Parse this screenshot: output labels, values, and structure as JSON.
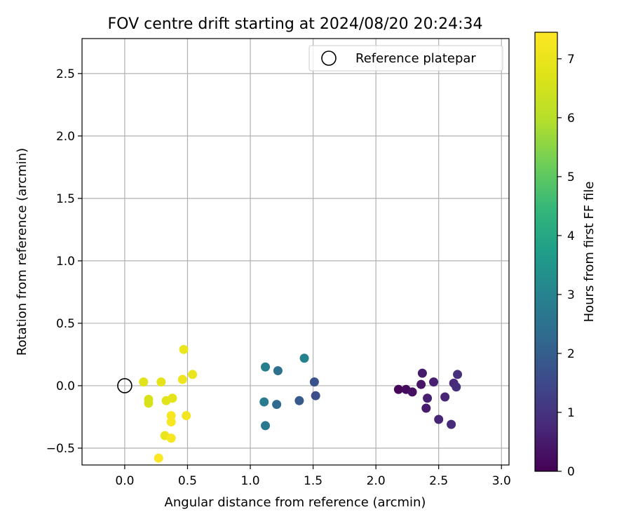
{
  "chart_data": {
    "type": "scatter",
    "title": "FOV centre drift starting at 2024/08/20 20:24:34",
    "xlabel": "Angular distance from reference (arcmin)",
    "ylabel": "Rotation from reference (arcmin)",
    "xlim": [
      -0.34,
      3.06
    ],
    "ylim": [
      -0.635,
      2.78
    ],
    "xticks": [
      0.0,
      0.5,
      1.0,
      1.5,
      2.0,
      2.5,
      3.0
    ],
    "xtick_labels": [
      "0.0",
      "0.5",
      "1.0",
      "1.5",
      "2.0",
      "2.5",
      "3.0"
    ],
    "yticks": [
      -0.5,
      0.0,
      0.5,
      1.0,
      1.5,
      2.0,
      2.5
    ],
    "ytick_labels": [
      "−0.5",
      "0.0",
      "0.5",
      "1.0",
      "1.5",
      "2.0",
      "2.5"
    ],
    "grid": true,
    "legend": {
      "position": "top-right",
      "entries": [
        "Reference platepar"
      ]
    },
    "reference": {
      "x": 0.0,
      "y": 0.0
    },
    "colorbar": {
      "label": "Hours from first FF file",
      "range": [
        0,
        7.45
      ],
      "ticks": [
        0,
        1,
        2,
        3,
        4,
        5,
        6,
        7
      ],
      "tick_labels": [
        "0",
        "1",
        "2",
        "3",
        "4",
        "5",
        "6",
        "7"
      ],
      "colormap": "viridis"
    },
    "points": [
      {
        "x": 2.18,
        "y": -0.03,
        "t": 0.1
      },
      {
        "x": 2.24,
        "y": -0.03,
        "t": 0.2
      },
      {
        "x": 2.29,
        "y": -0.05,
        "t": 0.3
      },
      {
        "x": 2.36,
        "y": 0.01,
        "t": 0.4
      },
      {
        "x": 2.37,
        "y": 0.1,
        "t": 0.5
      },
      {
        "x": 2.4,
        "y": -0.18,
        "t": 0.5
      },
      {
        "x": 2.41,
        "y": -0.1,
        "t": 0.6
      },
      {
        "x": 2.46,
        "y": 0.03,
        "t": 0.6
      },
      {
        "x": 2.5,
        "y": -0.27,
        "t": 0.7
      },
      {
        "x": 2.55,
        "y": -0.09,
        "t": 0.7
      },
      {
        "x": 2.6,
        "y": -0.31,
        "t": 0.8
      },
      {
        "x": 2.62,
        "y": 0.02,
        "t": 0.8
      },
      {
        "x": 2.64,
        "y": -0.01,
        "t": 0.9
      },
      {
        "x": 2.65,
        "y": 0.09,
        "t": 0.9
      },
      {
        "x": 1.52,
        "y": -0.08,
        "t": 1.6
      },
      {
        "x": 1.51,
        "y": 0.03,
        "t": 1.7
      },
      {
        "x": 1.39,
        "y": -0.12,
        "t": 1.9
      },
      {
        "x": 1.21,
        "y": -0.15,
        "t": 2.3
      },
      {
        "x": 1.22,
        "y": 0.12,
        "t": 2.5
      },
      {
        "x": 1.12,
        "y": -0.32,
        "t": 2.7
      },
      {
        "x": 1.11,
        "y": -0.13,
        "t": 2.8
      },
      {
        "x": 1.12,
        "y": 0.15,
        "t": 2.9
      },
      {
        "x": 1.43,
        "y": 0.22,
        "t": 3.0
      },
      {
        "x": 0.19,
        "y": -0.11,
        "t": 6.6
      },
      {
        "x": 0.19,
        "y": -0.14,
        "t": 6.6
      },
      {
        "x": 0.15,
        "y": 0.03,
        "t": 6.8
      },
      {
        "x": 0.33,
        "y": -0.12,
        "t": 6.8
      },
      {
        "x": 0.38,
        "y": -0.1,
        "t": 6.9
      },
      {
        "x": 0.29,
        "y": 0.03,
        "t": 6.9
      },
      {
        "x": 0.54,
        "y": 0.09,
        "t": 7.0
      },
      {
        "x": 0.47,
        "y": 0.29,
        "t": 7.0
      },
      {
        "x": 0.32,
        "y": -0.4,
        "t": 7.0
      },
      {
        "x": 0.46,
        "y": 0.05,
        "t": 7.1
      },
      {
        "x": 0.49,
        "y": -0.24,
        "t": 7.2
      },
      {
        "x": 0.37,
        "y": -0.24,
        "t": 7.3
      },
      {
        "x": 0.37,
        "y": -0.29,
        "t": 7.3
      },
      {
        "x": 0.37,
        "y": -0.42,
        "t": 7.3
      },
      {
        "x": 0.27,
        "y": -0.58,
        "t": 7.4
      }
    ]
  }
}
